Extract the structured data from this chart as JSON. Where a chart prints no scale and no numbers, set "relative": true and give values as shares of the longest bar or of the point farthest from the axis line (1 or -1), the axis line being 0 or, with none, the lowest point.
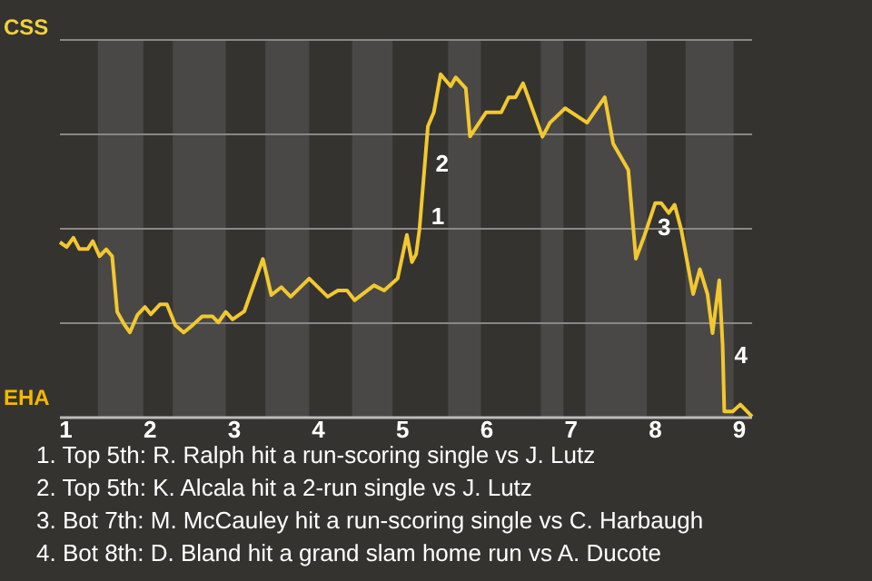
{
  "chart_data": {
    "type": "line",
    "relative": true,
    "x": [
      0.93,
      1.01,
      1.09,
      1.16,
      1.26,
      1.32,
      1.4,
      1.48,
      1.55,
      1.61,
      1.69,
      1.76,
      1.85,
      1.94,
      2.01,
      2.12,
      2.2,
      2.3,
      2.4,
      2.5,
      2.62,
      2.74,
      2.81,
      2.9,
      2.98,
      3.12,
      3.34,
      3.44,
      3.56,
      3.67,
      3.89,
      4.11,
      4.23,
      4.34,
      4.43,
      4.66,
      4.78,
      4.94,
      5.05,
      5.11,
      5.16,
      5.2,
      5.3,
      5.37,
      5.45,
      5.57,
      5.63,
      5.75,
      5.8,
      5.99,
      6.17,
      6.26,
      6.34,
      6.43,
      6.66,
      6.75,
      6.93,
      7.19,
      7.4,
      7.5,
      7.68,
      7.77,
      7.87,
      8,
      8.07,
      8.16,
      8.23,
      8.31,
      8.45,
      8.53,
      8.62,
      8.68,
      8.76,
      8.8,
      8.82,
      8.92,
      9.01,
      9.15
    ],
    "series": [
      {
        "color": "#f2c830",
        "values": [
          0.511,
          0.497,
          0.524,
          0.491,
          0.491,
          0.514,
          0.47,
          0.49,
          0.47,
          0.308,
          0.273,
          0.248,
          0.299,
          0.322,
          0.301,
          0.33,
          0.33,
          0.269,
          0.248,
          0.268,
          0.295,
          0.295,
          0.277,
          0.308,
          0.286,
          0.31,
          0.462,
          0.357,
          0.38,
          0.352,
          0.405,
          0.352,
          0.37,
          0.37,
          0.342,
          0.385,
          0.37,
          0.405,
          0.532,
          0.453,
          0.476,
          0.549,
          0.849,
          0.889,
          1,
          0.965,
          0.991,
          0.959,
          0.819,
          0.889,
          0.889,
          0.933,
          0.933,
          0.974,
          0.818,
          0.859,
          0.901,
          0.859,
          0.933,
          0.798,
          0.721,
          0.463,
          0.529,
          0.625,
          0.625,
          0.596,
          0.62,
          0.546,
          0.36,
          0.432,
          0.36,
          0.246,
          0.4,
          0.211,
          0.018,
          0.018,
          0.038,
          0.003
        ]
      }
    ],
    "xlim": [
      0.93,
      9.15
    ],
    "xticks": [
      1,
      2,
      3,
      4,
      5,
      6,
      7,
      8,
      9
    ],
    "grid": "y",
    "marker": "none",
    "line_style": "solid",
    "bands": [
      {
        "axis": "x",
        "from": 1.38,
        "to": 1.92,
        "color": "#4a4847"
      },
      {
        "axis": "x",
        "from": 2.27,
        "to": 2.9,
        "color": "#4a4847"
      },
      {
        "axis": "x",
        "from": 3.37,
        "to": 3.89,
        "color": "#4a4847"
      },
      {
        "axis": "x",
        "from": 4.4,
        "to": 4.88,
        "color": "#4a4847"
      },
      {
        "axis": "x",
        "from": 5.54,
        "to": 5.93,
        "color": "#4a4847"
      },
      {
        "axis": "x",
        "from": 6.64,
        "to": 6.91,
        "color": "#4a4847"
      },
      {
        "axis": "x",
        "from": 7.17,
        "to": 7.9,
        "color": "#4a4847"
      },
      {
        "axis": "x",
        "from": 8.36,
        "to": 8.93,
        "color": "#4a4847"
      }
    ],
    "annotations": [
      "CSS",
      "EHA",
      {
        "text": "1",
        "x": 5.211,
        "y": 0.582
      },
      {
        "text": "2",
        "x": 5.262,
        "y": 0.736
      },
      {
        "text": "3",
        "x": 7.9,
        "y": 0.549
      },
      {
        "text": "4",
        "x": 8.81,
        "y": 0.176
      },
      "1. Top 5th: R. Ralph hit a run-scoring single vs J. Lutz",
      "2. Top 5th: K. Alcala hit a 2-run single vs J. Lutz",
      "3. Bot 7th: M. McCauley hit a run-scoring single vs C. Harbaugh",
      "4. Bot 8th: D. Bland hit a grand slam home run vs A. Ducote"
    ]
  }
}
